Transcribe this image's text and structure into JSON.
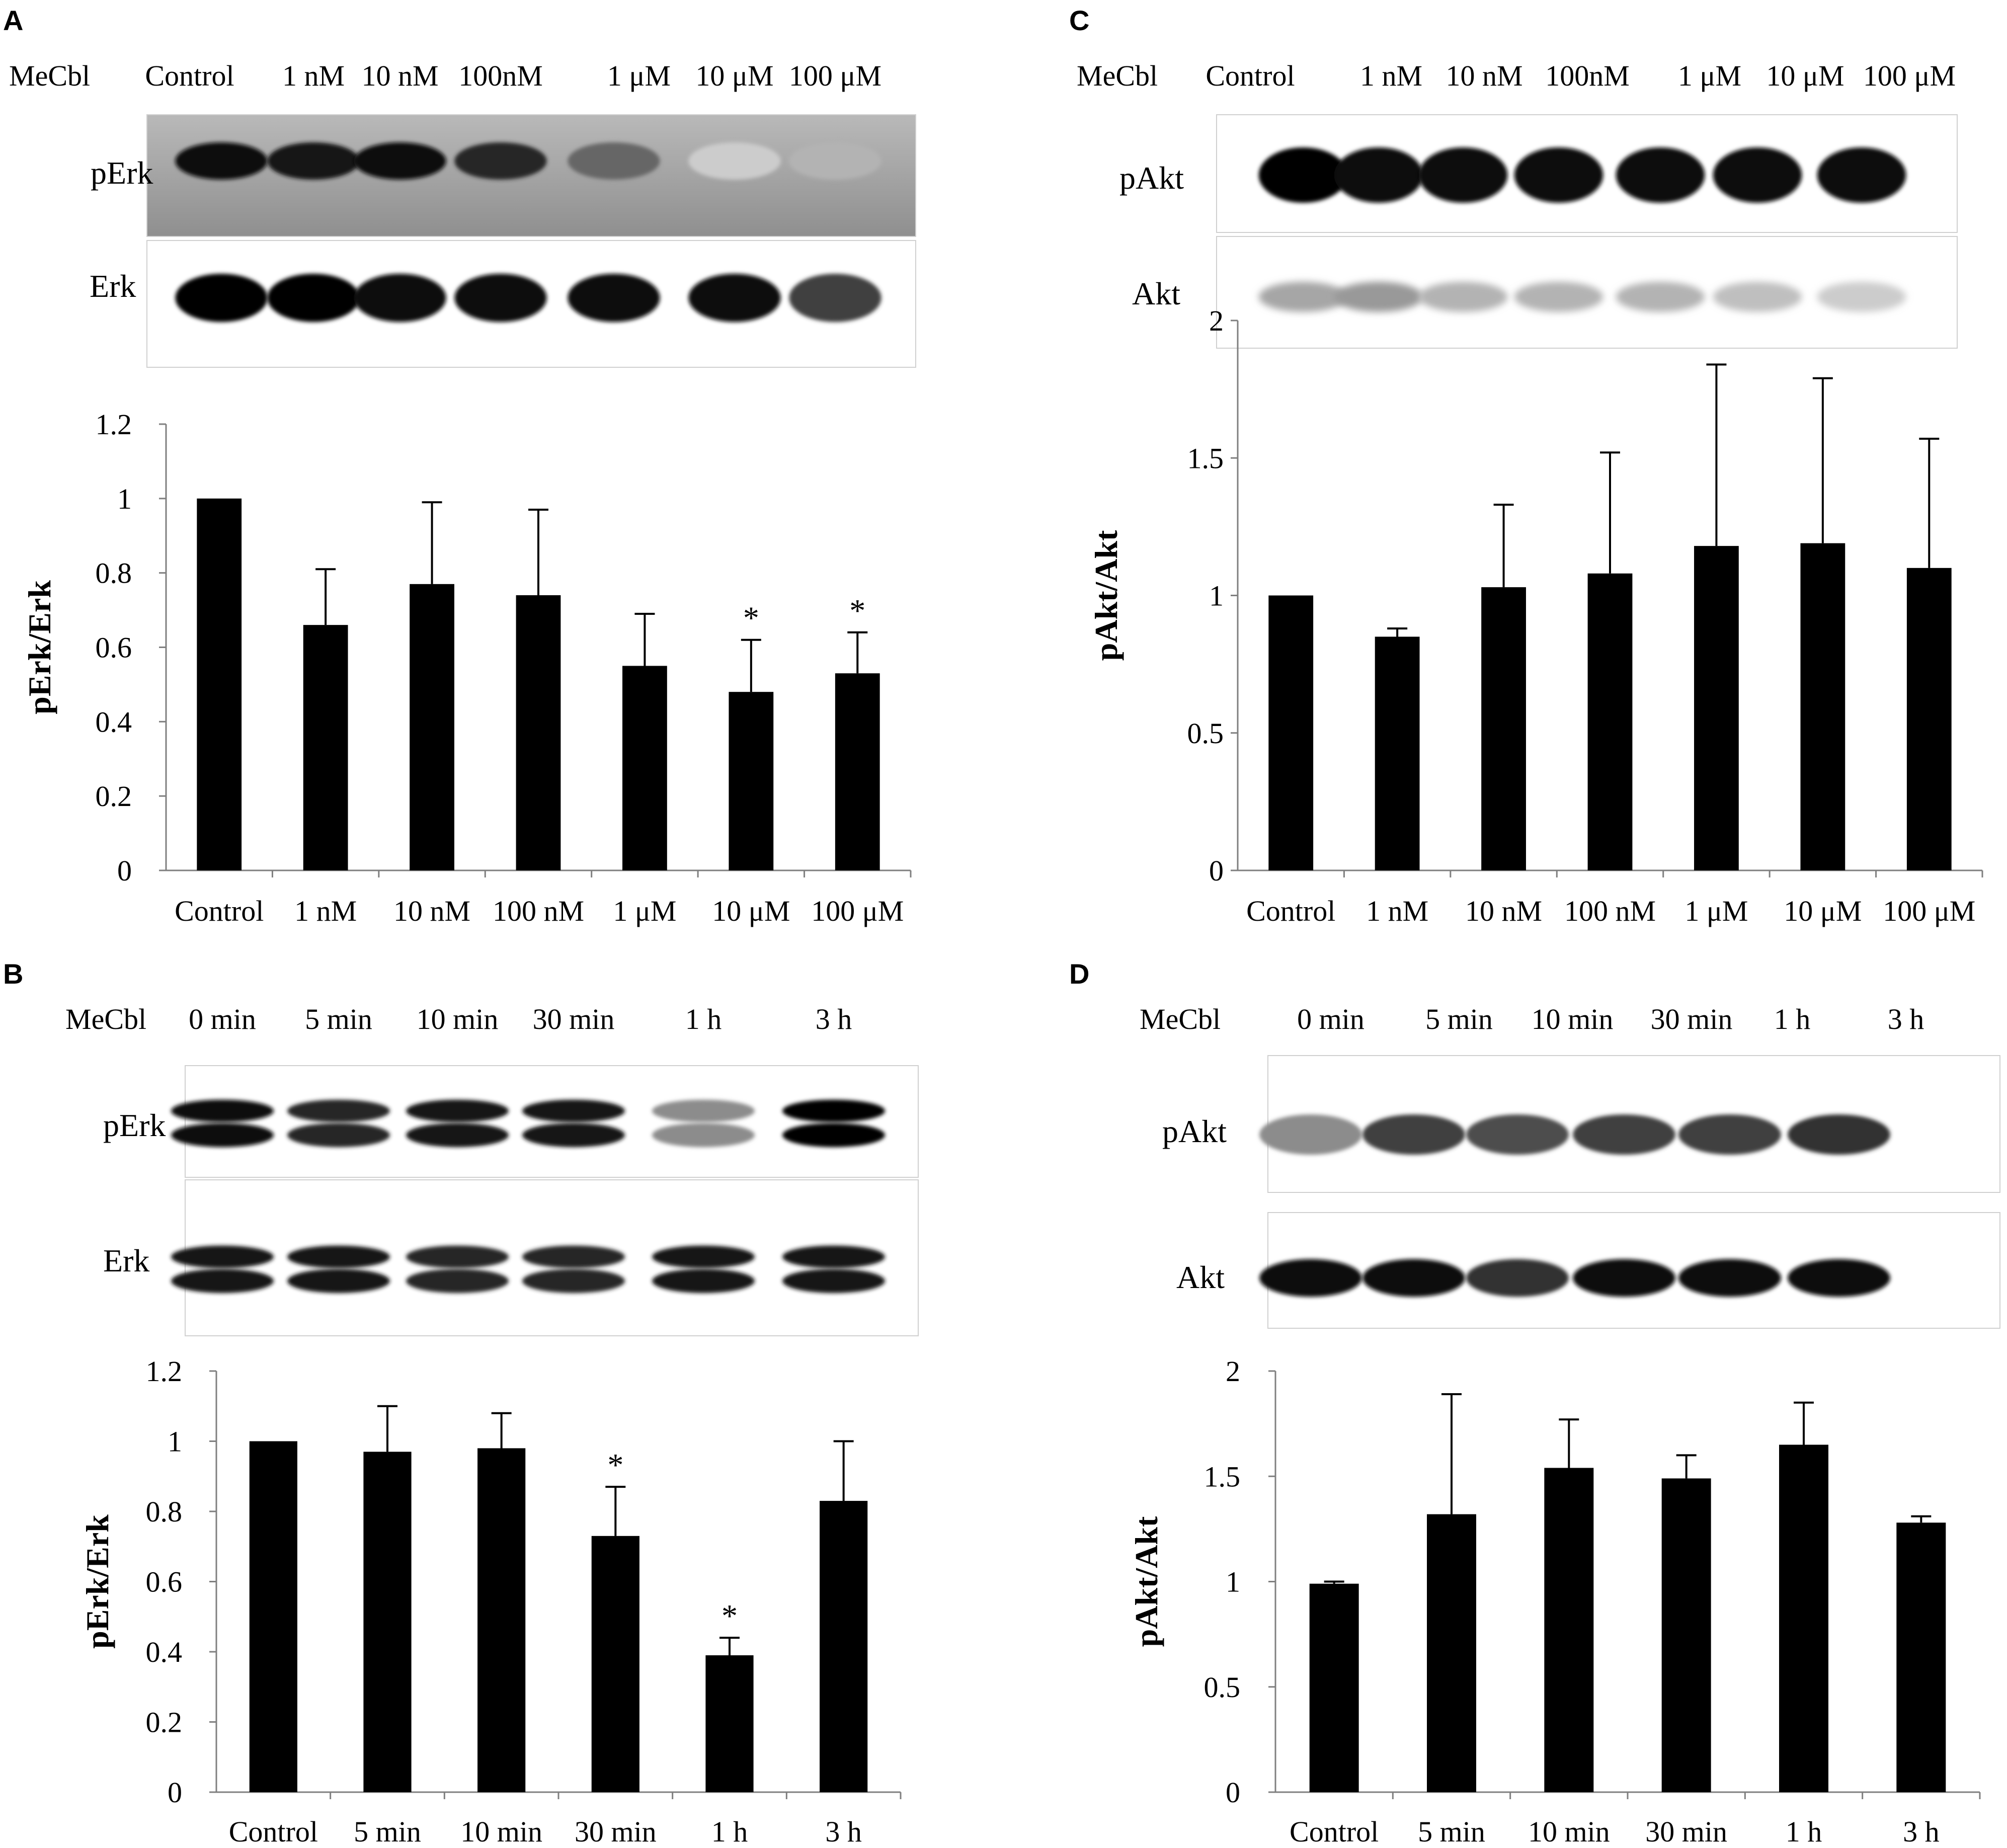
{
  "panels": [
    {
      "letter": "A",
      "blot": {
        "treatment_label": "MeCbl",
        "lanes": [
          "Control",
          "1 nM",
          "10 nM",
          "100nM",
          "1 μM",
          "10 μM",
          "100 μM"
        ],
        "rows": [
          {
            "label": "pErk",
            "style": "pErkA",
            "intensity": [
              0.95,
              0.9,
              0.95,
              0.85,
              0.6,
              0.2,
              0.3
            ]
          },
          {
            "label": "Erk",
            "style": "erkA",
            "intensity": [
              1,
              1,
              0.95,
              0.95,
              0.95,
              0.95,
              0.75
            ]
          }
        ]
      }
    },
    {
      "letter": "B",
      "blot": {
        "treatment_label": "MeCbl",
        "lanes": [
          "0 min",
          "5 min",
          "10 min",
          "30 min",
          "1 h",
          "3 h"
        ],
        "rows": [
          {
            "label": "pErk",
            "style": "double",
            "intensity": [
              0.95,
              0.85,
              0.9,
              0.9,
              0.45,
              1
            ]
          },
          {
            "label": "Erk",
            "style": "double",
            "intensity": [
              0.9,
              0.9,
              0.85,
              0.85,
              0.9,
              0.9
            ]
          }
        ]
      }
    },
    {
      "letter": "C",
      "blot": {
        "treatment_label": "MeCbl",
        "lanes": [
          "Control",
          "1 nM",
          "10 nM",
          "100nM",
          "1 μM",
          "10 μM",
          "100 μM"
        ],
        "rows": [
          {
            "label": "pAkt",
            "style": "single",
            "intensity": [
              1,
              0.95,
              0.95,
              0.95,
              0.95,
              0.95,
              0.95
            ]
          },
          {
            "label": "Akt",
            "style": "faint",
            "intensity": [
              0.35,
              0.4,
              0.3,
              0.3,
              0.3,
              0.25,
              0.2
            ]
          }
        ]
      }
    },
    {
      "letter": "D",
      "blot": {
        "treatment_label": "MeCbl",
        "lanes": [
          "0 min",
          "5 min",
          "10 min",
          "30 min",
          "1 h",
          "3 h"
        ],
        "rows": [
          {
            "label": "pAkt",
            "style": "single",
            "intensity": [
              0.45,
              0.75,
              0.7,
              0.75,
              0.75,
              0.8
            ]
          },
          {
            "label": "Akt",
            "style": "single",
            "intensity": [
              0.95,
              0.95,
              0.8,
              0.95,
              0.95,
              0.95
            ]
          }
        ]
      }
    }
  ],
  "chart_data": [
    {
      "panel": "A",
      "type": "bar",
      "categories": [
        "Control",
        "1 nM",
        "10 nM",
        "100 nM",
        "1 μM",
        "10 μM",
        "100 μM"
      ],
      "values": [
        1.0,
        0.66,
        0.77,
        0.74,
        0.55,
        0.48,
        0.53
      ],
      "error": [
        0,
        0.15,
        0.22,
        0.23,
        0.14,
        0.14,
        0.11
      ],
      "significance": [
        "",
        "",
        "",
        "",
        "",
        "*",
        "*"
      ],
      "ylabel": "pErk/Erk",
      "ylim": [
        0,
        1.2
      ],
      "yticks": [
        "0",
        "0.2",
        "0.4",
        "0.6",
        "0.8",
        "1",
        "1.2"
      ],
      "grid": false,
      "bar_color": "#000000"
    },
    {
      "panel": "B",
      "type": "bar",
      "categories": [
        "Control",
        "5 min",
        "10 min",
        "30 min",
        "1 h",
        "3 h"
      ],
      "values": [
        1.0,
        0.97,
        0.98,
        0.73,
        0.39,
        0.83
      ],
      "error": [
        0,
        0.13,
        0.1,
        0.14,
        0.05,
        0.17
      ],
      "significance": [
        "",
        "",
        "",
        "*",
        "*",
        ""
      ],
      "ylabel": "pErk/Erk",
      "ylim": [
        0,
        1.2
      ],
      "yticks": [
        "0",
        "0.2",
        "0.4",
        "0.6",
        "0.8",
        "1",
        "1.2"
      ],
      "grid": false,
      "bar_color": "#000000"
    },
    {
      "panel": "C",
      "type": "bar",
      "categories": [
        "Control",
        "1 nM",
        "10 nM",
        "100 nM",
        "1 μM",
        "10 μM",
        "100 μM"
      ],
      "values": [
        1.0,
        0.85,
        1.03,
        1.08,
        1.18,
        1.19,
        1.1
      ],
      "error": [
        0,
        0.03,
        0.3,
        0.44,
        0.66,
        0.6,
        0.47
      ],
      "significance": [
        "",
        "",
        "",
        "",
        "",
        "",
        ""
      ],
      "ylabel": "pAkt/Akt",
      "ylim": [
        0,
        2
      ],
      "yticks": [
        "0",
        "0.5",
        "1",
        "1.5",
        "2"
      ],
      "grid": false,
      "bar_color": "#000000"
    },
    {
      "panel": "D",
      "type": "bar",
      "categories": [
        "Control",
        "5 min",
        "10 min",
        "30 min",
        "1 h",
        "3 h"
      ],
      "values": [
        0.99,
        1.32,
        1.54,
        1.49,
        1.65,
        1.28
      ],
      "error": [
        0.01,
        0.57,
        0.23,
        0.11,
        0.2,
        0.03
      ],
      "significance": [
        "",
        "",
        "",
        "",
        "",
        ""
      ],
      "ylabel": "pAkt/Akt",
      "ylim": [
        0,
        2
      ],
      "yticks": [
        "0",
        "0.5",
        "1",
        "1.5",
        "2"
      ],
      "grid": false,
      "bar_color": "#000000"
    }
  ]
}
